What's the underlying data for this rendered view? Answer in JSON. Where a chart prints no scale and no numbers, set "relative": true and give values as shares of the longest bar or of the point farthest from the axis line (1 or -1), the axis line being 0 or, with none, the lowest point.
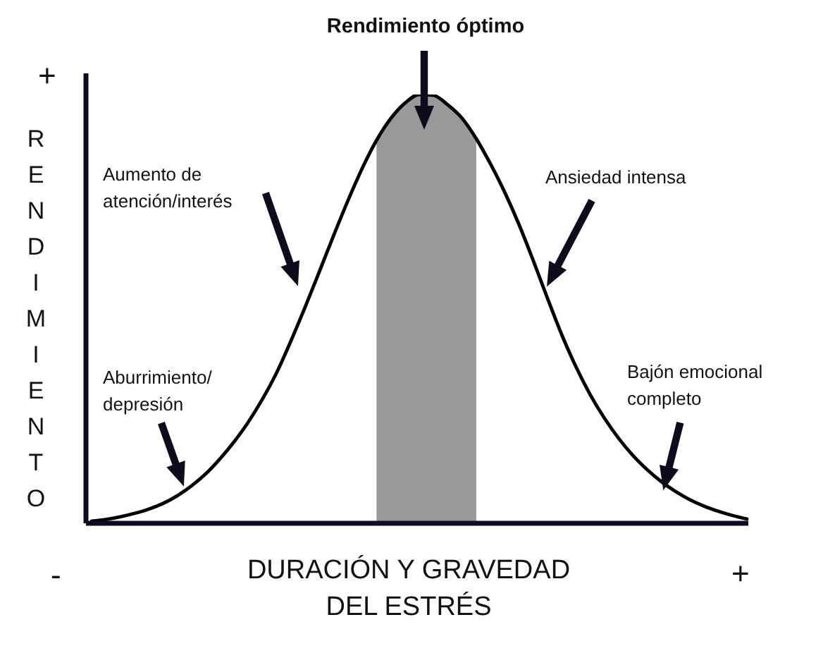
{
  "chart_data": {
    "type": "line",
    "relative": true,
    "xlabel": "DURACIÓN Y GRAVEDAD DEL ESTRÉS",
    "ylabel": "RENDIMIENTO",
    "annotations": [
      "Rendimiento óptimo",
      "+",
      "Aumento de atención/interés",
      "Ansiedad intensa",
      "Aburrimiento/ depresión",
      "Bajón emocional completo",
      "-",
      "+"
    ],
    "categories": [
      null,
      null,
      null,
      null,
      null,
      null,
      null,
      null,
      null,
      null,
      null,
      null,
      null,
      null,
      null,
      null,
      null,
      null,
      null,
      null,
      null,
      null,
      null,
      null,
      null,
      null,
      null,
      null,
      null,
      null,
      null,
      null,
      null,
      null,
      null,
      null,
      null,
      null,
      null,
      null,
      null,
      null,
      null,
      null,
      null,
      null,
      null
    ],
    "series": [
      {
        "type": "area",
        "color": "#999999",
        "values": [
          null,
          null,
          null,
          null,
          null,
          null,
          null,
          null,
          null,
          null,
          null,
          null,
          null,
          null,
          null,
          null,
          null,
          null,
          null,
          null,
          0.893,
          0.944,
          0.98,
          1,
          0.998,
          0.976,
          0.945,
          0.897,
          null,
          null,
          null,
          null,
          null,
          null,
          null,
          null,
          null,
          null,
          null,
          null,
          null,
          null,
          null,
          null,
          null,
          null,
          null
        ]
      },
      {
        "type": "line",
        "color": "#000000",
        "values": [
          0.005,
          0.009,
          0.015,
          0.023,
          0.033,
          0.046,
          0.064,
          0.087,
          0.115,
          0.15,
          0.19,
          0.236,
          0.29,
          0.352,
          0.426,
          0.505,
          0.588,
          0.672,
          0.753,
          0.828,
          0.893,
          0.944,
          0.98,
          1,
          0.998,
          0.976,
          0.945,
          0.897,
          0.838,
          0.772,
          0.697,
          0.613,
          0.525,
          0.44,
          0.365,
          0.3,
          0.245,
          0.198,
          0.158,
          0.125,
          0.097,
          0.074,
          0.055,
          0.04,
          0.028,
          0.018,
          0.01
        ]
      }
    ]
  }
}
